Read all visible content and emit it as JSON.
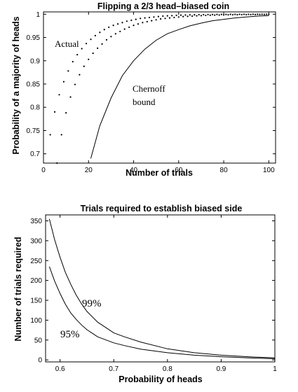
{
  "chart_data": [
    {
      "type": "scatter",
      "title": "Flipping a 2/3 head–biased coin",
      "xlabel": "Number of trials",
      "ylabel": "Probability of a majority of heads",
      "xlim": [
        0,
        103
      ],
      "ylim": [
        0.68,
        1.005
      ],
      "xticks": [
        0,
        20,
        40,
        60,
        80,
        100
      ],
      "yticks": [
        0.7,
        0.75,
        0.8,
        0.85,
        0.9,
        0.95,
        1
      ],
      "ytick_labels": [
        "0.7",
        "0.75",
        "0.8",
        "0.85",
        "0.9",
        "0.95",
        "1"
      ],
      "annotations": [
        {
          "text": "Actual"
        },
        {
          "text": "Chernoff"
        },
        {
          "text": "bound"
        }
      ],
      "series": [
        {
          "type": "scatter",
          "points": [
            [
              3,
              0.741
            ],
            [
              5,
              0.79
            ],
            [
              7,
              0.827
            ],
            [
              9,
              0.855
            ],
            [
              11,
              0.878
            ],
            [
              13,
              0.898
            ],
            [
              15,
              0.913
            ],
            [
              17,
              0.926
            ],
            [
              19,
              0.937
            ],
            [
              21,
              0.946
            ],
            [
              23,
              0.954
            ],
            [
              25,
              0.961
            ],
            [
              27,
              0.967
            ],
            [
              29,
              0.972
            ],
            [
              31,
              0.976
            ],
            [
              33,
              0.979
            ],
            [
              35,
              0.982
            ],
            [
              37,
              0.985
            ],
            [
              39,
              0.987
            ],
            [
              41,
              0.989
            ],
            [
              43,
              0.991
            ],
            [
              45,
              0.992
            ],
            [
              47,
              0.993
            ],
            [
              49,
              0.994
            ],
            [
              51,
              0.995
            ],
            [
              53,
              0.996
            ],
            [
              55,
              0.9965
            ],
            [
              57,
              0.997
            ],
            [
              59,
              0.9975
            ],
            [
              61,
              0.998
            ],
            [
              63,
              0.9983
            ],
            [
              65,
              0.9986
            ],
            [
              67,
              0.9988
            ],
            [
              69,
              0.999
            ],
            [
              71,
              0.9991
            ],
            [
              73,
              0.9993
            ],
            [
              75,
              0.9994
            ],
            [
              77,
              0.9995
            ],
            [
              79,
              0.9996
            ],
            [
              81,
              0.9996
            ],
            [
              83,
              0.9997
            ],
            [
              85,
              0.9997
            ],
            [
              87,
              0.9998
            ],
            [
              89,
              0.9998
            ],
            [
              91,
              0.9998
            ],
            [
              93,
              0.9999
            ],
            [
              95,
              0.9999
            ],
            [
              97,
              0.9999
            ],
            [
              99,
              0.9999
            ],
            [
              6,
              0.68
            ],
            [
              8,
              0.741
            ],
            [
              10,
              0.788
            ],
            [
              12,
              0.822
            ],
            [
              14,
              0.849
            ],
            [
              16,
              0.87
            ],
            [
              18,
              0.888
            ],
            [
              20,
              0.903
            ],
            [
              22,
              0.916
            ],
            [
              24,
              0.927
            ],
            [
              26,
              0.936
            ],
            [
              28,
              0.945
            ],
            [
              30,
              0.952
            ],
            [
              32,
              0.958
            ],
            [
              34,
              0.963
            ],
            [
              36,
              0.968
            ],
            [
              38,
              0.972
            ],
            [
              40,
              0.976
            ],
            [
              42,
              0.979
            ],
            [
              44,
              0.982
            ],
            [
              46,
              0.984
            ],
            [
              48,
              0.986
            ],
            [
              50,
              0.988
            ],
            [
              52,
              0.99
            ],
            [
              54,
              0.991
            ],
            [
              56,
              0.992
            ],
            [
              58,
              0.993
            ],
            [
              60,
              0.994
            ],
            [
              62,
              0.995
            ],
            [
              64,
              0.9955
            ],
            [
              66,
              0.996
            ],
            [
              68,
              0.9966
            ],
            [
              70,
              0.997
            ],
            [
              72,
              0.9974
            ],
            [
              74,
              0.9978
            ],
            [
              76,
              0.998
            ],
            [
              78,
              0.9983
            ],
            [
              80,
              0.9985
            ],
            [
              82,
              0.9987
            ],
            [
              84,
              0.9989
            ],
            [
              86,
              0.999
            ],
            [
              88,
              0.9991
            ],
            [
              90,
              0.9992
            ],
            [
              92,
              0.9993
            ],
            [
              94,
              0.9994
            ],
            [
              96,
              0.9995
            ],
            [
              98,
              0.9996
            ],
            [
              100,
              0.9996
            ]
          ]
        },
        {
          "type": "line",
          "x": [
            21,
            25,
            30,
            35,
            40,
            45,
            50,
            55,
            60,
            65,
            70,
            75,
            80,
            85,
            90,
            95,
            100
          ],
          "y": [
            0.69,
            0.76,
            0.82,
            0.868,
            0.9,
            0.925,
            0.944,
            0.958,
            0.967,
            0.975,
            0.981,
            0.986,
            0.989,
            0.992,
            0.994,
            0.996,
            0.997
          ]
        }
      ]
    },
    {
      "type": "line",
      "title": "Trials required to establish biased side",
      "xlabel": "Probability of heads",
      "ylabel": "Number of trials required",
      "xlim": [
        0.573,
        1.0
      ],
      "ylim": [
        -5,
        365
      ],
      "xticks": [
        0.6,
        0.7,
        0.8,
        0.9,
        1.0
      ],
      "xtick_labels": [
        "0.6",
        "0.7",
        "0.8",
        "0.9",
        "1"
      ],
      "yticks": [
        0,
        50,
        100,
        150,
        200,
        250,
        300,
        350
      ],
      "annotations": [
        {
          "text": "99%"
        },
        {
          "text": "95%"
        }
      ],
      "series": [
        {
          "label": "99%",
          "x": [
            0.58,
            0.59,
            0.6,
            0.61,
            0.62,
            0.63,
            0.64,
            0.65,
            0.67,
            0.7,
            0.72,
            0.75,
            0.8,
            0.85,
            0.9,
            0.95,
            1.0
          ],
          "y": [
            355,
            302,
            258,
            220,
            190,
            163,
            141,
            122,
            95,
            68,
            58,
            45,
            28,
            18,
            12,
            8,
            5
          ]
        },
        {
          "label": "95%",
          "x": [
            0.58,
            0.59,
            0.6,
            0.61,
            0.62,
            0.63,
            0.64,
            0.65,
            0.67,
            0.7,
            0.72,
            0.75,
            0.8,
            0.85,
            0.9,
            0.95,
            1.0
          ],
          "y": [
            235,
            198,
            167,
            140,
            118,
            102,
            88,
            76,
            58,
            43,
            36,
            27,
            18,
            12,
            8,
            5,
            3
          ]
        }
      ]
    }
  ]
}
